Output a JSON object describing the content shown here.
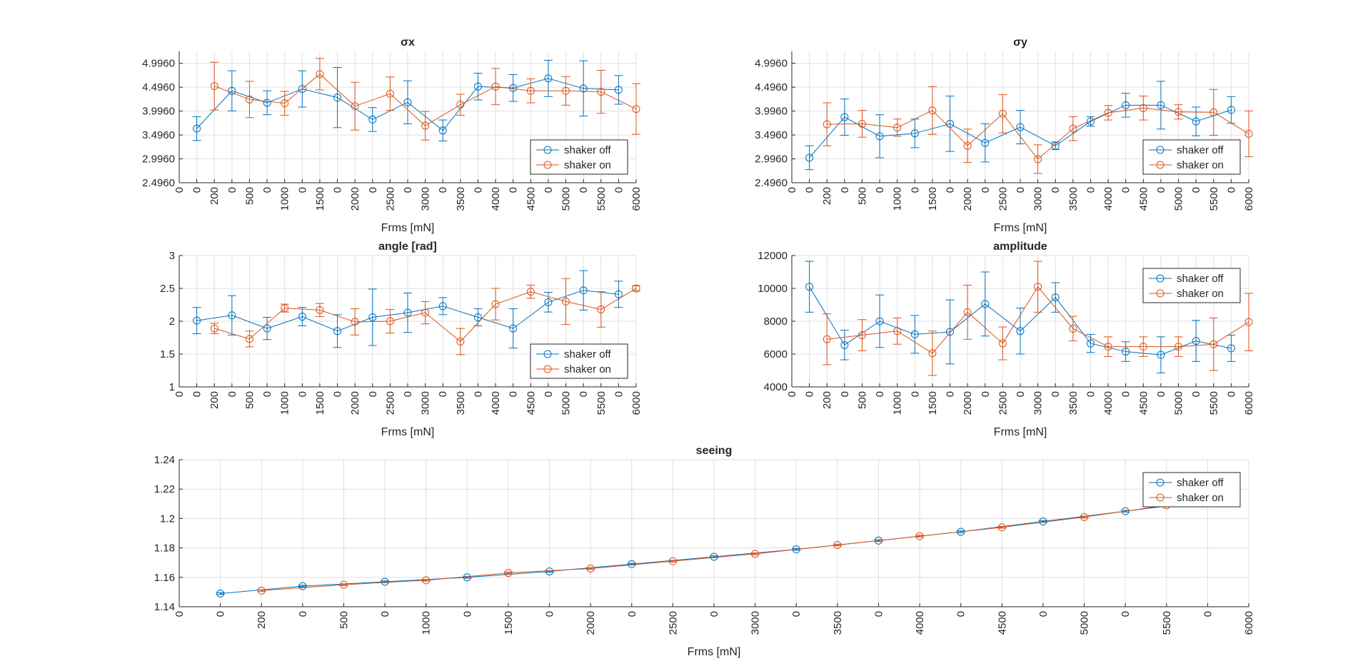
{
  "colors": {
    "shaker_off": "#0072BD",
    "shaker_on": "#D95319",
    "grid": "#dfdfdf",
    "axis": "#262626"
  },
  "chart_data": [
    {
      "type": "line",
      "title": "σx",
      "xlabel": "Frms [mN]",
      "ylabel": "",
      "ylim": [
        2.496,
        5.246
      ],
      "yticks": [
        "2.4960",
        "2.9960",
        "3.4960",
        "3.9960",
        "4.4960",
        "4.9960"
      ],
      "ytick_values": [
        2.496,
        2.996,
        3.496,
        3.996,
        4.496,
        4.996
      ],
      "xlim": [
        0,
        26
      ],
      "xtick_labels": [
        "0",
        "0",
        "200",
        "0",
        "500",
        "0",
        "1000",
        "0",
        "1500",
        "0",
        "2000",
        "0",
        "2500",
        "0",
        "3000",
        "0",
        "3500",
        "0",
        "4000",
        "0",
        "4500",
        "0",
        "5000",
        "0",
        "5500",
        "0",
        "6000"
      ],
      "grid": true,
      "legend_position": "bottom-right",
      "series": [
        {
          "name": "shaker off",
          "x": [
            1,
            3,
            5,
            7,
            9,
            11,
            13,
            15,
            17,
            19,
            21,
            23,
            25
          ],
          "values": [
            3.63,
            4.42,
            4.17,
            4.46,
            4.28,
            3.82,
            4.18,
            3.59,
            4.51,
            4.48,
            4.68,
            4.47,
            4.44
          ],
          "errors": [
            0.25,
            0.42,
            0.25,
            0.38,
            0.63,
            0.25,
            0.45,
            0.22,
            0.28,
            0.28,
            0.38,
            0.58,
            0.3
          ]
        },
        {
          "name": "shaker on",
          "x": [
            2,
            4,
            6,
            8,
            10,
            12,
            14,
            16,
            18,
            20,
            22,
            24,
            26
          ],
          "values": [
            4.52,
            4.24,
            4.16,
            4.77,
            4.1,
            4.36,
            3.69,
            4.13,
            4.51,
            4.42,
            4.42,
            4.4,
            4.04
          ],
          "errors": [
            0.5,
            0.38,
            0.25,
            0.33,
            0.5,
            0.35,
            0.3,
            0.22,
            0.38,
            0.25,
            0.3,
            0.45,
            0.53
          ]
        }
      ]
    },
    {
      "type": "line",
      "title": "σy",
      "xlabel": "Frms [mN]",
      "ylabel": "",
      "ylim": [
        2.496,
        5.246
      ],
      "yticks": [
        "2.4960",
        "2.9960",
        "3.4960",
        "3.9960",
        "4.4960",
        "4.9960"
      ],
      "ytick_values": [
        2.496,
        2.996,
        3.496,
        3.996,
        4.496,
        4.996
      ],
      "xlim": [
        0,
        26
      ],
      "xtick_labels": [
        "0",
        "0",
        "200",
        "0",
        "500",
        "0",
        "1000",
        "0",
        "1500",
        "0",
        "2000",
        "0",
        "2500",
        "0",
        "3000",
        "0",
        "3500",
        "0",
        "4000",
        "0",
        "4500",
        "0",
        "5000",
        "0",
        "5500",
        "0",
        "6000"
      ],
      "grid": true,
      "legend_position": "bottom-right",
      "series": [
        {
          "name": "shaker off",
          "x": [
            1,
            3,
            5,
            7,
            9,
            11,
            13,
            15,
            17,
            19,
            21,
            23,
            25
          ],
          "values": [
            3.02,
            3.87,
            3.47,
            3.53,
            3.73,
            3.33,
            3.66,
            3.27,
            3.78,
            4.12,
            4.12,
            3.78,
            4.02
          ],
          "errors": [
            0.25,
            0.38,
            0.45,
            0.3,
            0.58,
            0.4,
            0.35,
            0.08,
            0.1,
            0.25,
            0.5,
            0.3,
            0.28
          ]
        },
        {
          "name": "shaker on",
          "x": [
            2,
            4,
            6,
            8,
            10,
            12,
            14,
            16,
            18,
            20,
            22,
            24,
            26
          ],
          "values": [
            3.72,
            3.73,
            3.65,
            4.01,
            3.27,
            3.94,
            2.99,
            3.63,
            3.96,
            4.06,
            3.98,
            3.97,
            3.52
          ],
          "errors": [
            0.45,
            0.28,
            0.18,
            0.5,
            0.35,
            0.4,
            0.3,
            0.25,
            0.15,
            0.25,
            0.15,
            0.48,
            0.48
          ]
        }
      ]
    },
    {
      "type": "line",
      "title": "angle [rad]",
      "xlabel": "Frms [mN]",
      "ylabel": "",
      "ylim": [
        1,
        3
      ],
      "yticks": [
        "1",
        "1.5",
        "2",
        "2.5",
        "3"
      ],
      "ytick_values": [
        1,
        1.5,
        2,
        2.5,
        3
      ],
      "xlim": [
        0,
        26
      ],
      "xtick_labels": [
        "0",
        "0",
        "200",
        "0",
        "500",
        "0",
        "1000",
        "0",
        "1500",
        "0",
        "2000",
        "0",
        "2500",
        "0",
        "3000",
        "0",
        "3500",
        "0",
        "4000",
        "0",
        "4500",
        "0",
        "5000",
        "0",
        "5500",
        "0",
        "6000"
      ],
      "grid": true,
      "legend_position": "bottom-right",
      "series": [
        {
          "name": "shaker off",
          "x": [
            1,
            3,
            5,
            7,
            9,
            11,
            13,
            15,
            17,
            19,
            21,
            23,
            25
          ],
          "values": [
            2.01,
            2.09,
            1.89,
            2.07,
            1.85,
            2.06,
            2.13,
            2.23,
            2.06,
            1.89,
            2.29,
            2.47,
            2.41
          ],
          "errors": [
            0.2,
            0.3,
            0.17,
            0.14,
            0.25,
            0.43,
            0.3,
            0.13,
            0.13,
            0.3,
            0.15,
            0.3,
            0.2
          ]
        },
        {
          "name": "shaker on",
          "x": [
            2,
            4,
            6,
            8,
            10,
            12,
            14,
            16,
            18,
            20,
            22,
            24,
            26
          ],
          "values": [
            1.89,
            1.73,
            2.2,
            2.17,
            1.99,
            2.0,
            2.13,
            1.69,
            2.26,
            2.45,
            2.3,
            2.18,
            2.5
          ],
          "errors": [
            0.08,
            0.12,
            0.06,
            0.1,
            0.2,
            0.18,
            0.17,
            0.2,
            0.24,
            0.1,
            0.35,
            0.27,
            0.04
          ]
        }
      ]
    },
    {
      "type": "line",
      "title": "amplitude",
      "xlabel": "Frms [mN]",
      "ylabel": "",
      "ylim": [
        4000,
        12000
      ],
      "yticks": [
        "4000",
        "6000",
        "8000",
        "10000",
        "12000"
      ],
      "ytick_values": [
        4000,
        6000,
        8000,
        10000,
        12000
      ],
      "xlim": [
        0,
        26
      ],
      "xtick_labels": [
        "0",
        "0",
        "200",
        "0",
        "500",
        "0",
        "1000",
        "0",
        "1500",
        "0",
        "2000",
        "0",
        "2500",
        "0",
        "3000",
        "0",
        "3500",
        "0",
        "4000",
        "0",
        "4500",
        "0",
        "5000",
        "0",
        "5500",
        "0",
        "6000"
      ],
      "grid": true,
      "legend_position": "top-right",
      "series": [
        {
          "name": "shaker off",
          "x": [
            1,
            3,
            5,
            7,
            9,
            11,
            13,
            15,
            17,
            19,
            21,
            23,
            25
          ],
          "values": [
            10100,
            6550,
            8000,
            7200,
            7350,
            9050,
            7400,
            9450,
            6650,
            6150,
            5950,
            6800,
            6350
          ],
          "errors": [
            1550,
            900,
            1600,
            1150,
            1950,
            1950,
            1400,
            900,
            550,
            600,
            1100,
            1250,
            800
          ]
        },
        {
          "name": "shaker on",
          "x": [
            2,
            4,
            6,
            8,
            10,
            12,
            14,
            16,
            18,
            20,
            22,
            24,
            26
          ],
          "values": [
            6900,
            7150,
            7400,
            6050,
            8550,
            6650,
            10100,
            7550,
            6450,
            6450,
            6450,
            6600,
            7950
          ],
          "errors": [
            1550,
            950,
            800,
            1350,
            1650,
            1000,
            1550,
            750,
            600,
            600,
            600,
            1600,
            1750
          ]
        }
      ]
    },
    {
      "type": "line",
      "title": "seeing",
      "xlabel": "Frms [mN]",
      "ylabel": "",
      "ylim": [
        1.14,
        1.24
      ],
      "yticks": [
        "1.14",
        "1.16",
        "1.18",
        "1.2",
        "1.22",
        "1.24"
      ],
      "ytick_values": [
        1.14,
        1.16,
        1.18,
        1.2,
        1.22,
        1.24
      ],
      "xlim": [
        0,
        26
      ],
      "xtick_labels": [
        "0",
        "0",
        "200",
        "0",
        "500",
        "0",
        "1000",
        "0",
        "1500",
        "0",
        "2000",
        "0",
        "2500",
        "0",
        "3000",
        "0",
        "3500",
        "0",
        "4000",
        "0",
        "4500",
        "0",
        "5000",
        "0",
        "5500",
        "0",
        "6000"
      ],
      "grid": true,
      "legend_position": "top-right",
      "series": [
        {
          "name": "shaker off",
          "x": [
            1,
            3,
            5,
            7,
            9,
            11,
            13,
            15,
            17,
            19,
            21,
            23,
            25
          ],
          "values": [
            1.149,
            1.154,
            1.157,
            1.16,
            1.164,
            1.169,
            1.174,
            1.179,
            1.185,
            1.191,
            1.198,
            1.205,
            1.212
          ],
          "errors": [
            0.0006,
            0.0006,
            0.0006,
            0.0006,
            0.0006,
            0.0006,
            0.0006,
            0.0006,
            0.0006,
            0.0006,
            0.0006,
            0.0006,
            0.0006
          ]
        },
        {
          "name": "shaker on",
          "x": [
            2,
            4,
            6,
            8,
            10,
            12,
            14,
            16,
            18,
            20,
            22,
            24
          ],
          "values": [
            1.151,
            1.155,
            1.158,
            1.163,
            1.166,
            1.171,
            1.176,
            1.182,
            1.188,
            1.194,
            1.201,
            1.209
          ],
          "errors": [
            0.0006,
            0.0006,
            0.0006,
            0.0006,
            0.0006,
            0.0006,
            0.0006,
            0.0006,
            0.0006,
            0.0006,
            0.0006,
            0.0006
          ]
        }
      ]
    }
  ]
}
